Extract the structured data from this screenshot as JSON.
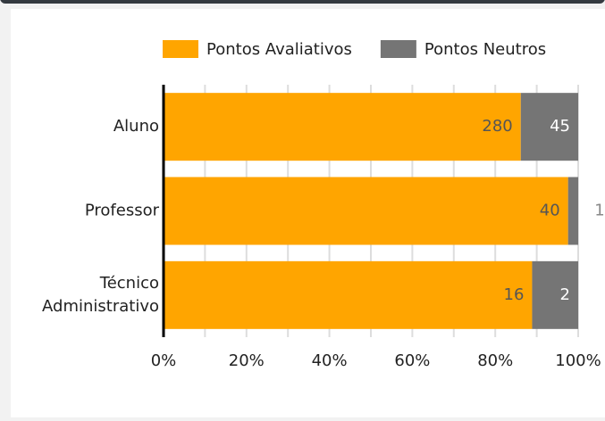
{
  "chart_data": {
    "type": "bar",
    "orientation": "horizontal",
    "stacked": "percent",
    "categories": [
      "Aluno",
      "Professor",
      "Técnico Administrativo"
    ],
    "series": [
      {
        "name": "Pontos Avaliativos",
        "color": "#ffa500",
        "values": [
          280,
          40,
          16
        ]
      },
      {
        "name": "Pontos Neutros",
        "color": "#757575",
        "values": [
          45,
          1,
          2
        ]
      }
    ],
    "xlim": [
      0,
      100
    ],
    "xticks": [
      {
        "value": 0,
        "label": "0%"
      },
      {
        "value": 20,
        "label": "20%"
      },
      {
        "value": 40,
        "label": "40%"
      },
      {
        "value": 60,
        "label": "60%"
      },
      {
        "value": 80,
        "label": "80%"
      },
      {
        "value": 100,
        "label": "100%"
      }
    ],
    "minor_xticks": [
      10,
      30,
      50,
      70,
      90
    ],
    "grid": true,
    "legend": "top"
  }
}
